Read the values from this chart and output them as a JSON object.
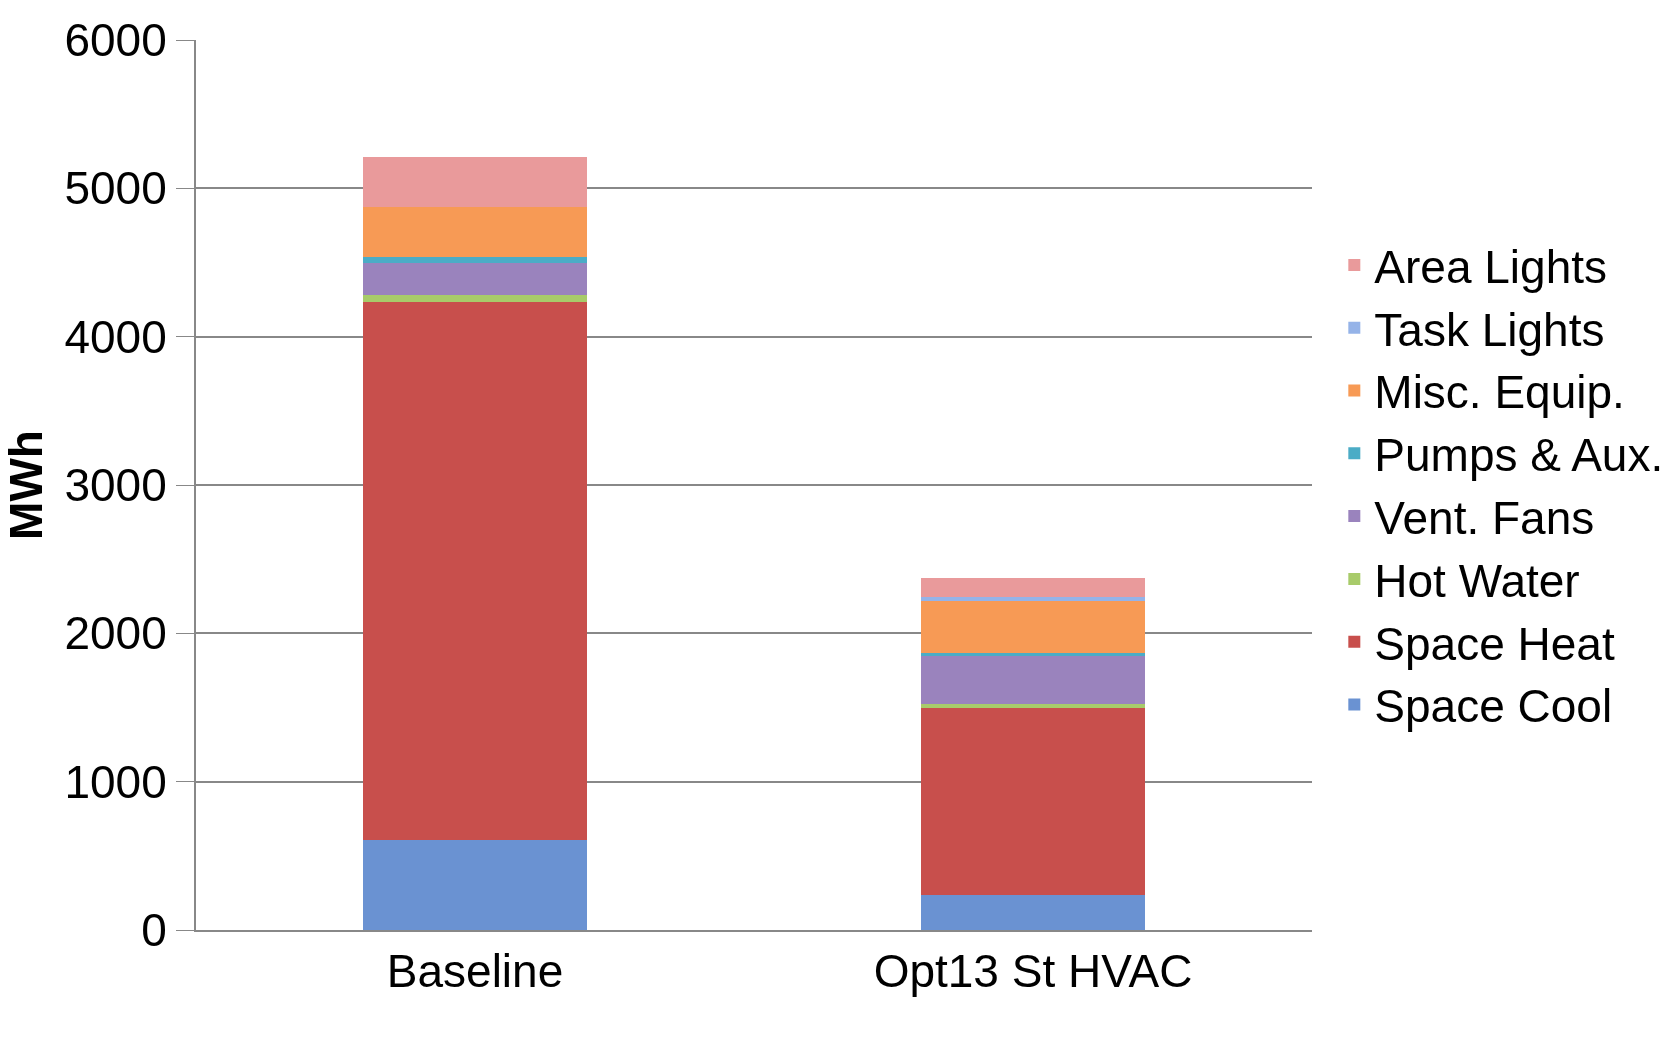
{
  "chart_data": {
    "type": "bar",
    "stacked": true,
    "ylabel": "MWh",
    "categories": [
      "Baseline",
      "Opt13 St HVAC"
    ],
    "series": [
      {
        "name": "Space Cool",
        "color": "#6a92d2",
        "values": [
          605,
          235
        ]
      },
      {
        "name": "Space Heat",
        "color": "#c84f4c",
        "values": [
          3630,
          1265
        ]
      },
      {
        "name": "Hot Water",
        "color": "#a8cb6a",
        "values": [
          45,
          25
        ]
      },
      {
        "name": "Vent. Fans",
        "color": "#9a83bd",
        "values": [
          220,
          320
        ]
      },
      {
        "name": "Pumps & Aux.",
        "color": "#4bacc6",
        "values": [
          35,
          25
        ]
      },
      {
        "name": "Misc. Equip.",
        "color": "#f79a55",
        "values": [
          340,
          350
        ]
      },
      {
        "name": "Task Lights",
        "color": "#95b3e8",
        "values": [
          0,
          25
        ]
      },
      {
        "name": "Area Lights",
        "color": "#e99a9b",
        "values": [
          335,
          130
        ]
      }
    ],
    "ylim": [
      0,
      6000
    ],
    "yticks": [
      0,
      1000,
      2000,
      3000,
      4000,
      5000,
      6000
    ],
    "grid": "y",
    "legend": "right"
  }
}
